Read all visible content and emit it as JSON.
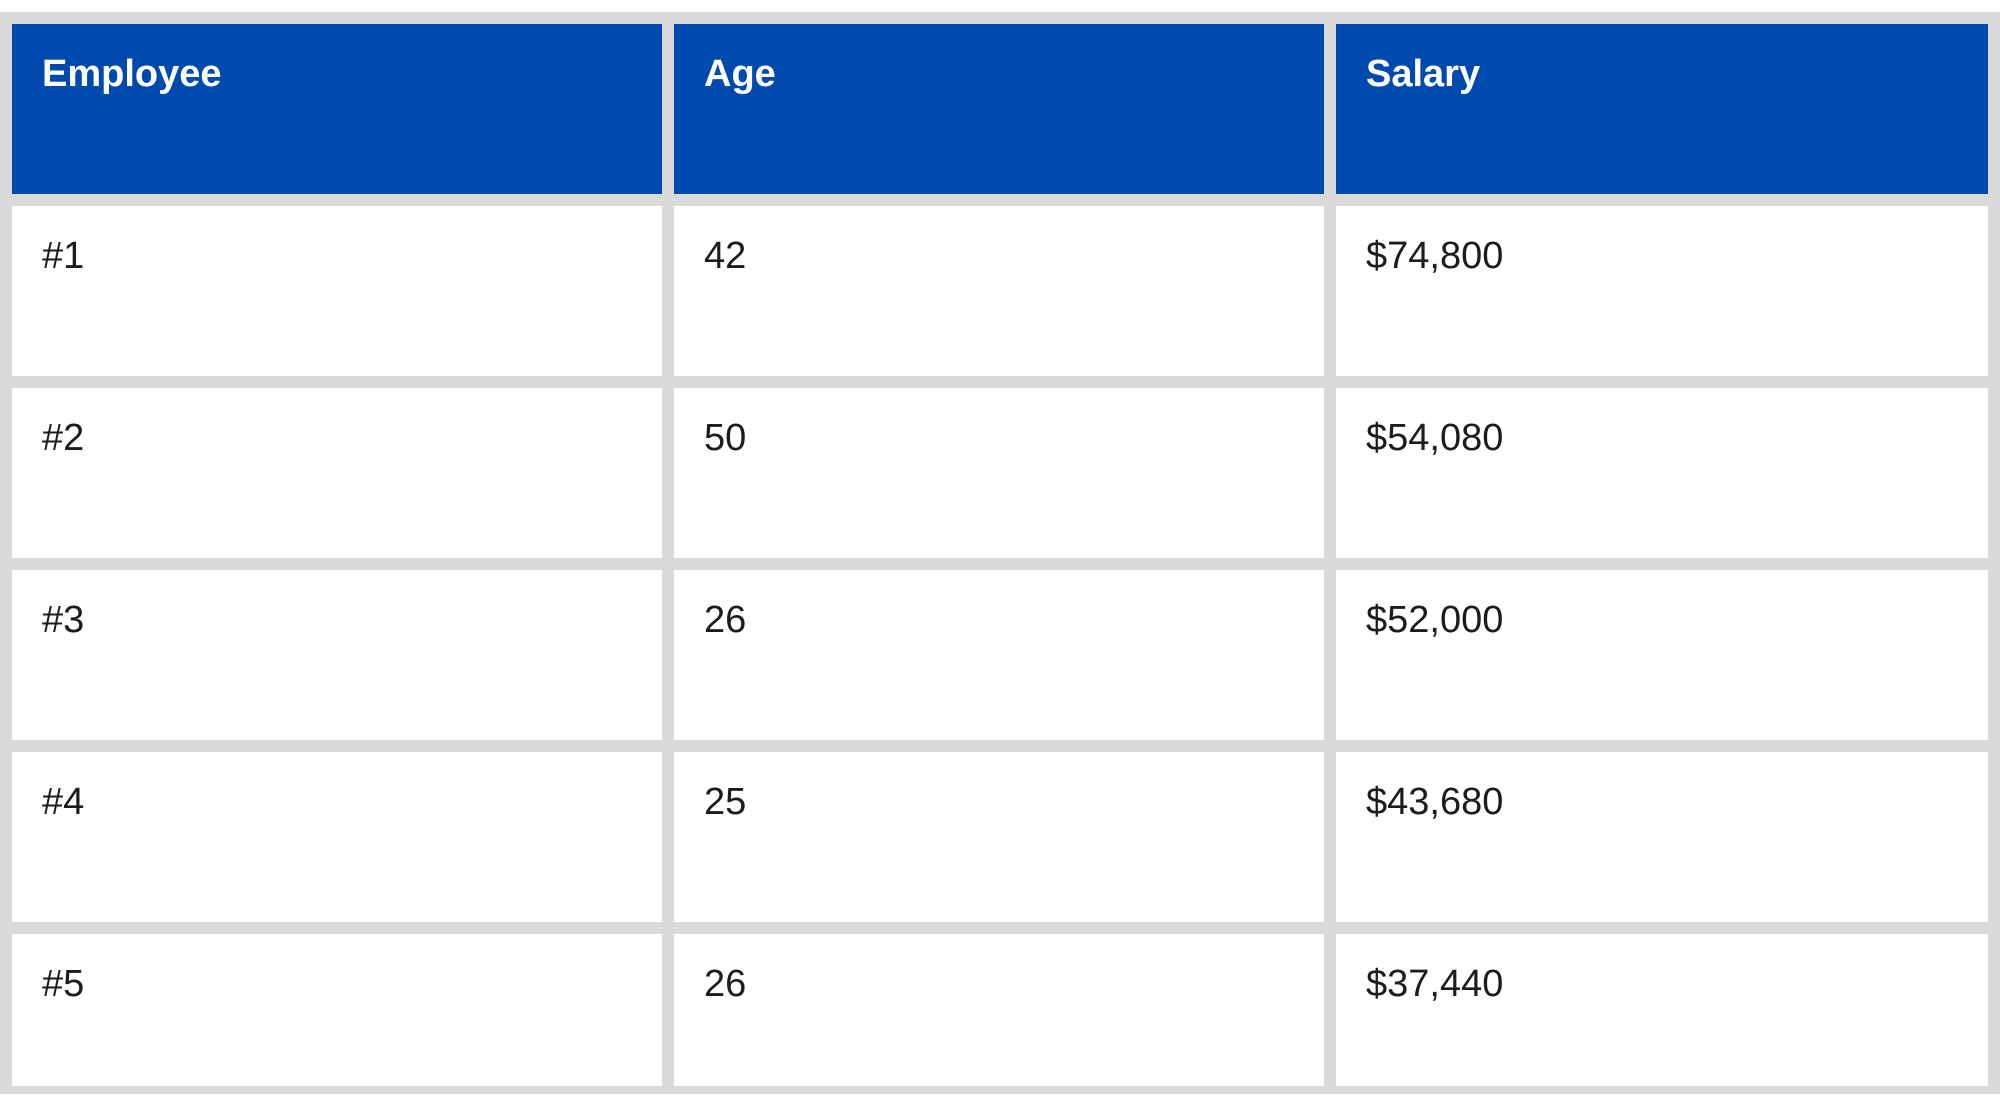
{
  "table": {
    "headers": [
      "Employee",
      "Age",
      "Salary"
    ],
    "rows": [
      [
        "#1",
        "42",
        "$74,800"
      ],
      [
        "#2",
        "50",
        "$54,080"
      ],
      [
        "#3",
        "26",
        "$52,000"
      ],
      [
        "#4",
        "25",
        "$43,680"
      ],
      [
        "#5",
        "26",
        "$37,440"
      ]
    ]
  },
  "colors": {
    "header_bg": "#004aad",
    "border": "#dadada"
  }
}
